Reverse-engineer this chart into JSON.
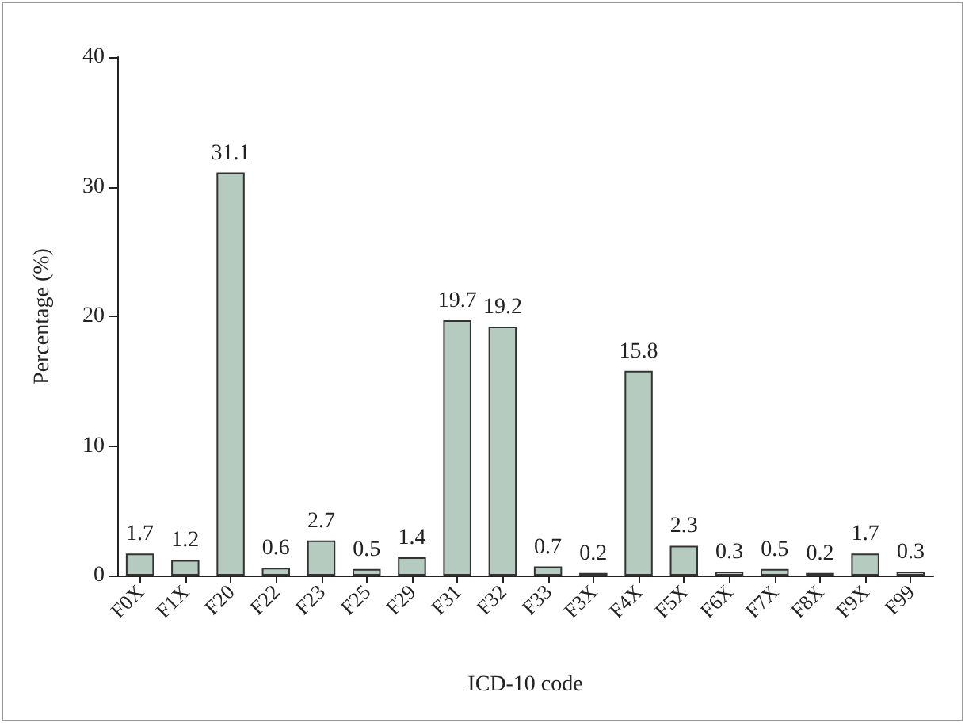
{
  "chart_data": {
    "type": "bar",
    "xlabel": "ICD-10 code",
    "ylabel": "Percentage (%)",
    "categories": [
      "F0X",
      "F1X",
      "F20",
      "F22",
      "F23",
      "F25",
      "F29",
      "F31",
      "F32",
      "F33",
      "F3X",
      "F4X",
      "F5X",
      "F6X",
      "F7X",
      "F8X",
      "F9X",
      "F99"
    ],
    "values": [
      1.7,
      1.2,
      31.1,
      0.6,
      2.7,
      0.5,
      1.4,
      19.7,
      19.2,
      0.7,
      0.2,
      15.8,
      2.3,
      0.3,
      0.5,
      0.2,
      1.7,
      0.3
    ],
    "color": "#b5cbbf",
    "ylim": [
      0,
      40
    ],
    "yticks": [
      0,
      10,
      20,
      30,
      40
    ],
    "grid": false,
    "data_labels": true
  }
}
